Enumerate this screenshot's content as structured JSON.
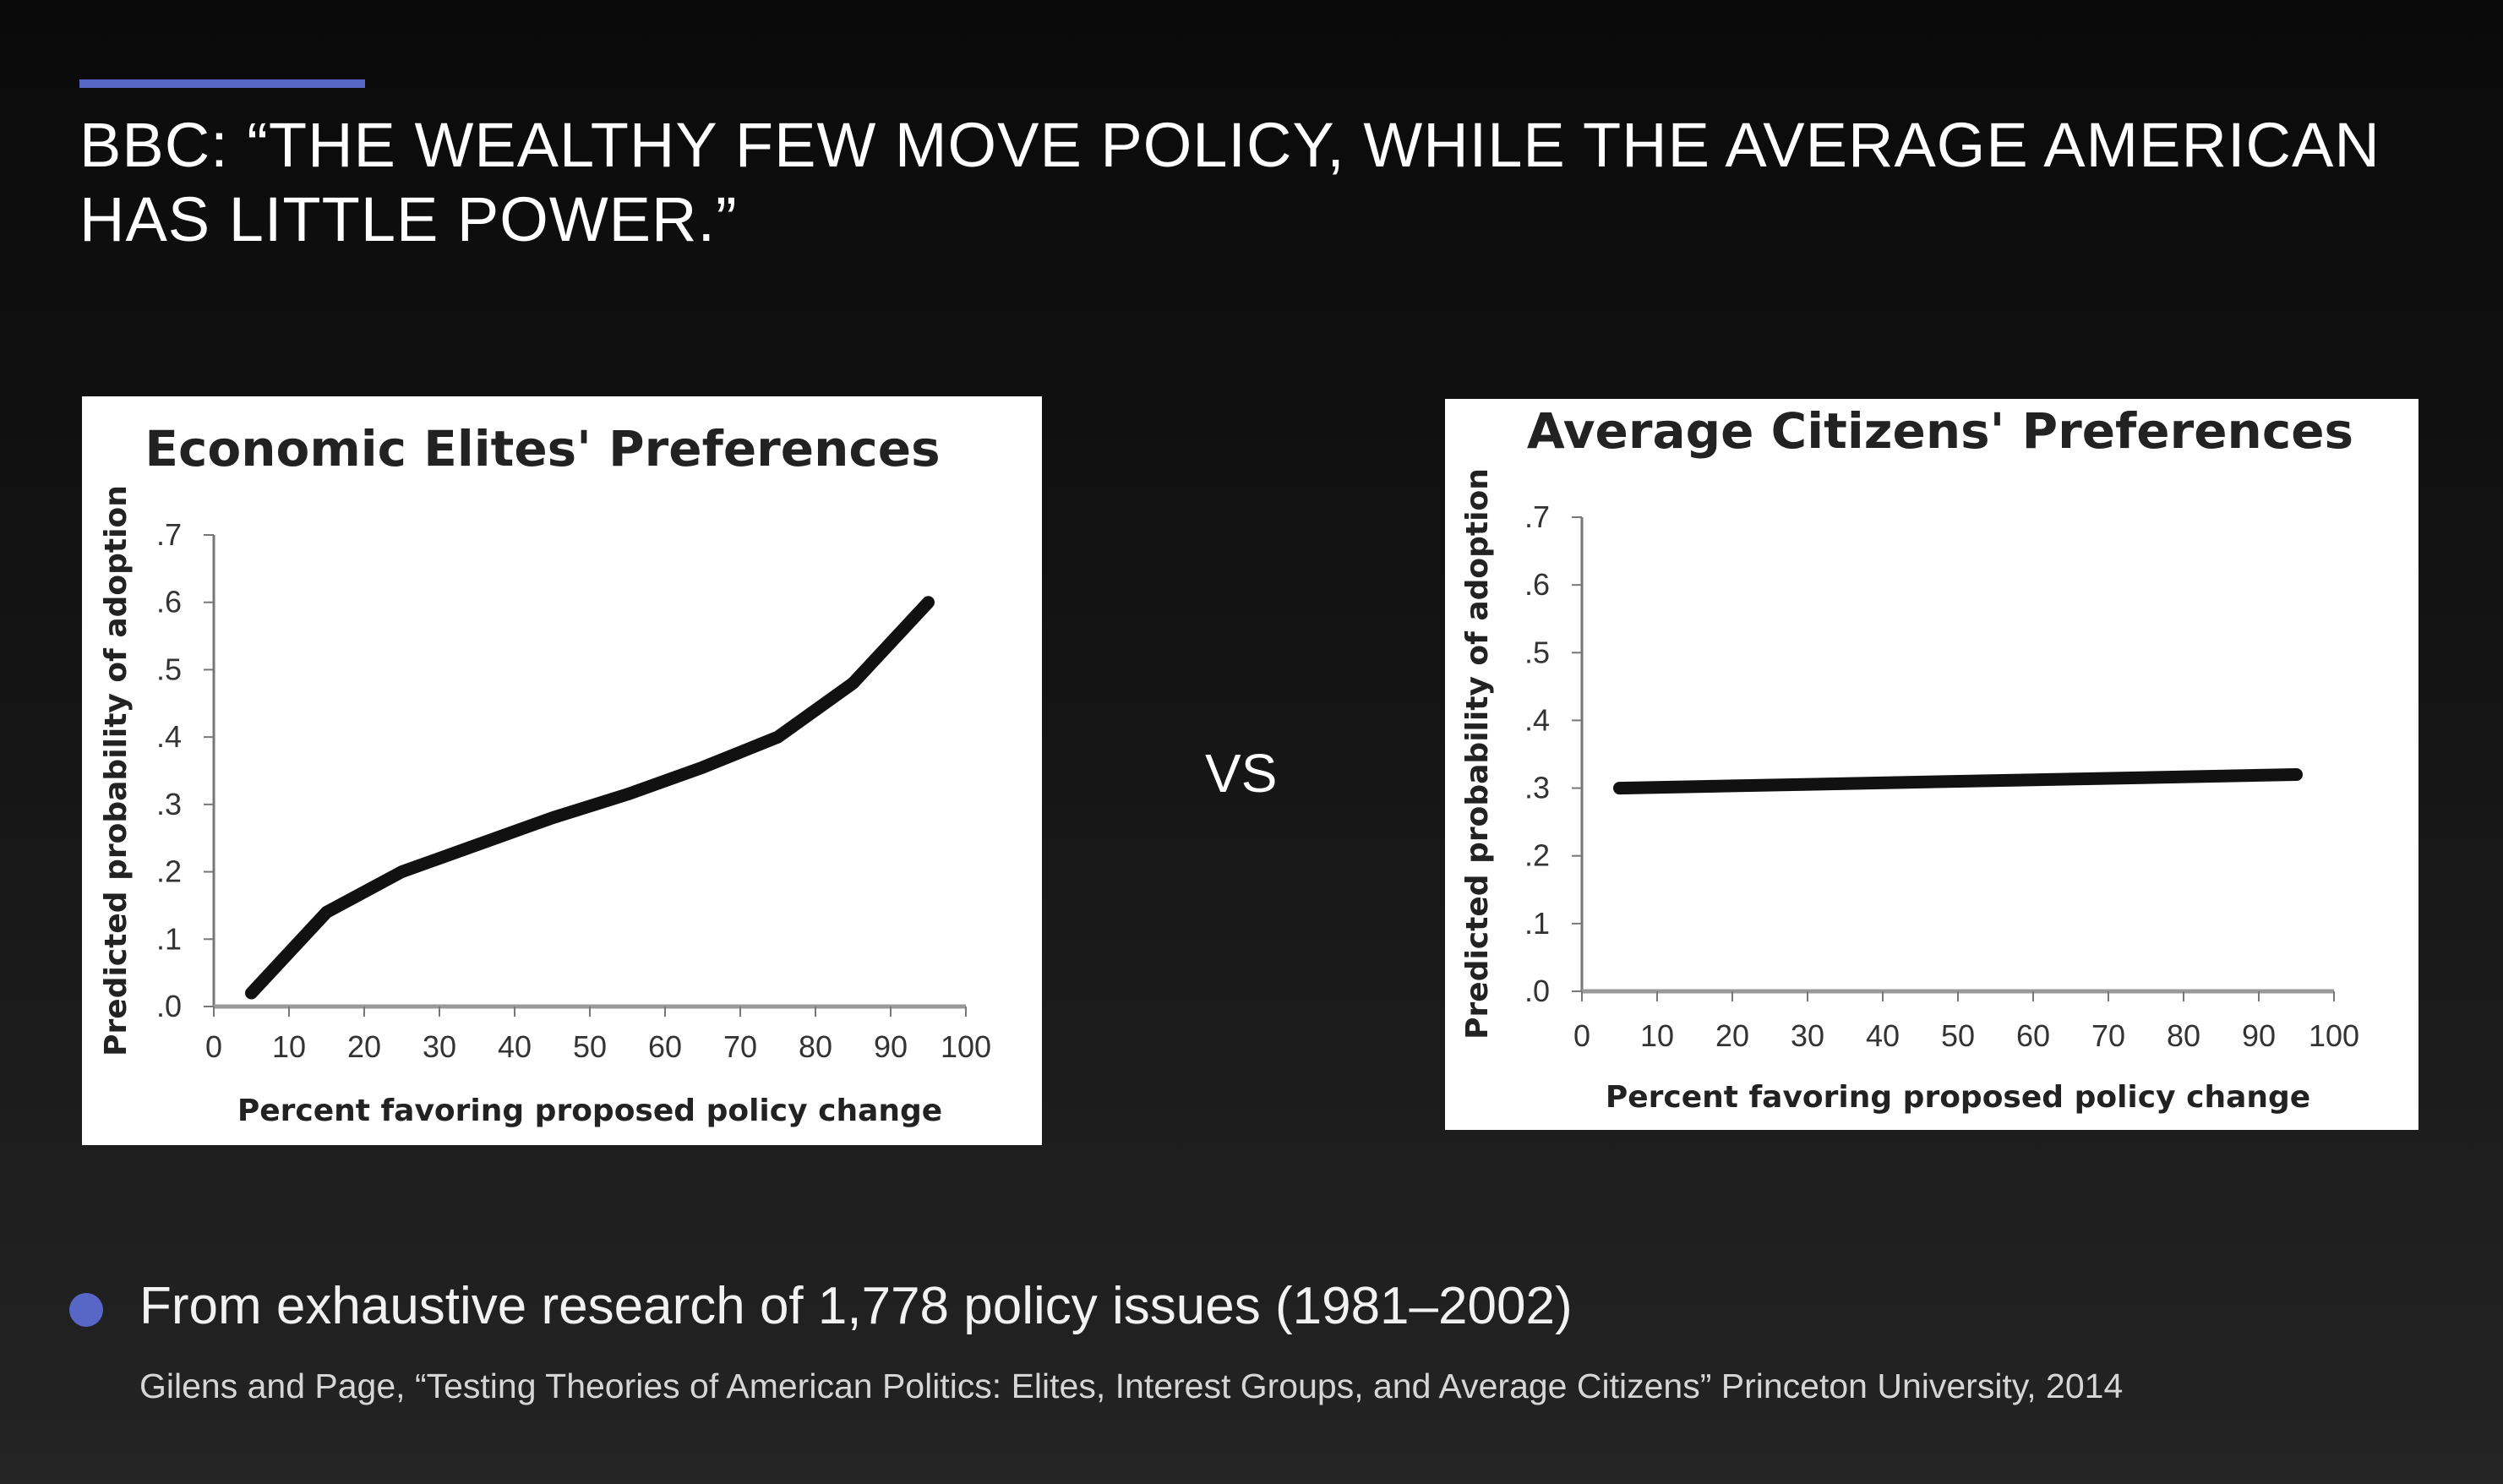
{
  "slide": {
    "title": "BBC: “THE WEALTHY FEW MOVE POLICY, WHILE THE AVERAGE AMERICAN HAS LITTLE POWER.”",
    "vs_label": "VS",
    "bullet": "From exhaustive research of 1,778 policy issues (1981–2002)",
    "citation": "Gilens and Page, “Testing Theories of American Politics: Elites, Interest Groups, and Average Citizens” Princeton University, 2014",
    "accent_color": "#5866c8"
  },
  "chart_data": [
    {
      "type": "line",
      "title": "Economic Elites' Preferences",
      "xlabel": "Percent favoring proposed policy change",
      "ylabel": "Predicted probability of adoption",
      "xlim": [
        0,
        100
      ],
      "ylim": [
        0,
        0.7
      ],
      "x_ticks": [
        "0",
        "10",
        "20",
        "30",
        "40",
        "50",
        "60",
        "70",
        "80",
        "90",
        "100"
      ],
      "y_ticks": [
        ".0",
        ".1",
        ".2",
        ".3",
        ".4",
        ".5",
        ".6",
        ".7"
      ],
      "x": [
        5,
        15,
        25,
        35,
        45,
        55,
        65,
        75,
        85,
        95
      ],
      "y": [
        0.02,
        0.14,
        0.2,
        0.24,
        0.28,
        0.315,
        0.355,
        0.4,
        0.48,
        0.6
      ],
      "line_color": "#111111",
      "grid": false
    },
    {
      "type": "line",
      "title": "Average Citizens' Preferences",
      "xlabel": "Percent favoring proposed policy change",
      "ylabel": "Predicted probability of adoption",
      "xlim": [
        0,
        100
      ],
      "ylim": [
        0,
        0.7
      ],
      "x_ticks": [
        "0",
        "10",
        "20",
        "30",
        "40",
        "50",
        "60",
        "70",
        "80",
        "90",
        "100"
      ],
      "y_ticks": [
        ".0",
        ".1",
        ".2",
        ".3",
        ".4",
        ".5",
        ".6",
        ".7"
      ],
      "x": [
        5,
        95
      ],
      "y": [
        0.3,
        0.32
      ],
      "line_color": "#111111",
      "grid": false
    }
  ]
}
